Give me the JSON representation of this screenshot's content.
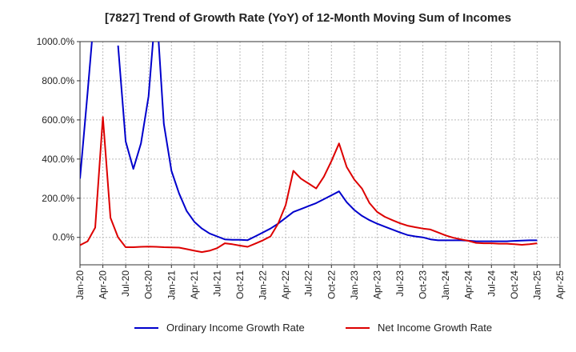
{
  "title": "[7827]  Trend of Growth Rate (YoY) of 12-Month Moving Sum of Incomes",
  "chart_data": {
    "type": "line",
    "title": "[7827]  Trend of Growth Rate (YoY) of 12-Month Moving Sum of Incomes",
    "xlabel": "",
    "ylabel": "",
    "ylim": [
      -140,
      1000
    ],
    "xlim": [
      "2020-01",
      "2025-04"
    ],
    "grid": true,
    "legend_position": "bottom",
    "y_ticks": [
      "1000.0%",
      "800.0%",
      "600.0%",
      "400.0%",
      "200.0%",
      "0.0%"
    ],
    "y_tick_values": [
      1000,
      800,
      600,
      400,
      200,
      0
    ],
    "x_ticks": [
      "Jan-20",
      "Apr-20",
      "Jul-20",
      "Oct-20",
      "Jan-21",
      "Apr-21",
      "Jul-21",
      "Oct-21",
      "Jan-22",
      "Apr-22",
      "Jul-22",
      "Oct-22",
      "Jan-23",
      "Apr-23",
      "Jul-23",
      "Oct-23",
      "Jan-24",
      "Apr-24",
      "Jul-24",
      "Oct-24",
      "Jan-25",
      "Apr-25"
    ],
    "x_tick_months": [
      "2020-01",
      "2020-04",
      "2020-07",
      "2020-10",
      "2021-01",
      "2021-04",
      "2021-07",
      "2021-10",
      "2022-01",
      "2022-04",
      "2022-07",
      "2022-10",
      "2023-01",
      "2023-04",
      "2023-07",
      "2023-10",
      "2024-01",
      "2024-04",
      "2024-07",
      "2024-10",
      "2025-01",
      "2025-04"
    ],
    "x": [
      "2020-01",
      "2020-02",
      "2020-03",
      "2020-04",
      "2020-05",
      "2020-06",
      "2020-07",
      "2020-08",
      "2020-09",
      "2020-10",
      "2020-11",
      "2020-12",
      "2021-01",
      "2021-02",
      "2021-03",
      "2021-04",
      "2021-05",
      "2021-06",
      "2021-07",
      "2021-08",
      "2021-09",
      "2021-10",
      "2021-11",
      "2021-12",
      "2022-01",
      "2022-02",
      "2022-03",
      "2022-04",
      "2022-05",
      "2022-06",
      "2022-07",
      "2022-08",
      "2022-09",
      "2022-10",
      "2022-11",
      "2022-12",
      "2023-01",
      "2023-02",
      "2023-03",
      "2023-04",
      "2023-05",
      "2023-06",
      "2023-07",
      "2023-08",
      "2023-09",
      "2023-10",
      "2023-11",
      "2023-12",
      "2024-01",
      "2024-02",
      "2024-03",
      "2024-04",
      "2024-05",
      "2024-06",
      "2024-07",
      "2024-08",
      "2024-09",
      "2024-10",
      "2024-11",
      "2024-12",
      "2025-01"
    ],
    "series": [
      {
        "name": "Ordinary Income Growth Rate",
        "color": "#0000cc",
        "values": [
          300,
          740,
          1200,
          null,
          null,
          980,
          490,
          350,
          480,
          720,
          1200,
          580,
          340,
          225,
          135,
          80,
          45,
          20,
          5,
          -10,
          -12,
          -12,
          -14,
          5,
          25,
          45,
          70,
          100,
          130,
          145,
          160,
          175,
          195,
          215,
          235,
          180,
          140,
          110,
          88,
          70,
          55,
          40,
          25,
          12,
          5,
          0,
          -10,
          -15,
          -15,
          -15,
          -15,
          -17,
          -20,
          -20,
          -20,
          -20,
          -20,
          -18,
          -16,
          -15,
          -15
        ]
      },
      {
        "name": "Net Income Growth Rate",
        "color": "#dd0000",
        "values": [
          -40,
          -20,
          50,
          615,
          100,
          0,
          -50,
          -50,
          -48,
          -47,
          -48,
          -50,
          -51,
          -52,
          -60,
          -68,
          -75,
          -68,
          -55,
          -30,
          -35,
          -42,
          -48,
          -32,
          -15,
          5,
          70,
          165,
          340,
          300,
          275,
          250,
          310,
          390,
          480,
          360,
          295,
          250,
          175,
          130,
          105,
          88,
          72,
          60,
          52,
          45,
          40,
          25,
          10,
          -2,
          -10,
          -18,
          -28,
          -30,
          -30,
          -32,
          -32,
          -35,
          -38,
          -35,
          -30
        ]
      }
    ]
  }
}
